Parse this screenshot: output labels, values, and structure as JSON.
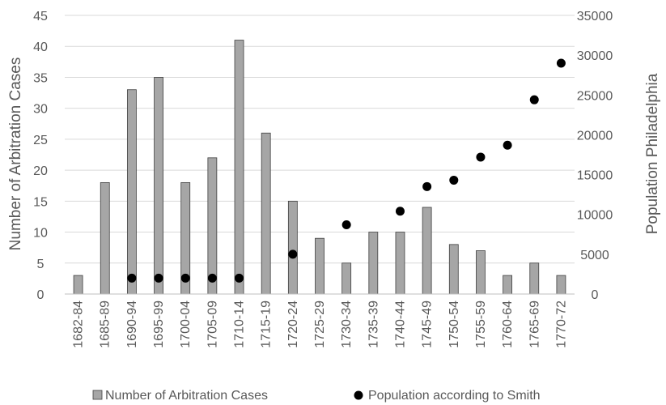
{
  "chart_data": {
    "type": "bar",
    "title": "",
    "xlabel": "",
    "ylabel": "Number of Arbitration Cases",
    "y2label": "Population Philadelphia",
    "categories": [
      "1682-84",
      "1685-89",
      "1690-94",
      "1695-99",
      "1700-04",
      "1705-09",
      "1710-14",
      "1715-19",
      "1720-24",
      "1725-29",
      "1730-34",
      "1735-39",
      "1740-44",
      "1745-49",
      "1750-54",
      "1755-59",
      "1760-64",
      "1765-69",
      "1770-72"
    ],
    "series": [
      {
        "name": "Number of Arbitration Cases",
        "type": "bar",
        "axis": "left",
        "color": "#a6a6a6",
        "values": [
          3,
          18,
          33,
          35,
          18,
          22,
          41,
          26,
          15,
          9,
          5,
          10,
          10,
          14,
          8,
          7,
          3,
          5,
          3
        ]
      },
      {
        "name": "Population according to Smith",
        "type": "scatter",
        "axis": "right",
        "color": "#000000",
        "values": [
          null,
          null,
          2000,
          2000,
          2000,
          2000,
          2000,
          null,
          5000,
          null,
          8700,
          null,
          10400,
          13500,
          14300,
          17200,
          18700,
          24400,
          29000
        ]
      }
    ],
    "ylim": [
      0,
      45
    ],
    "yticks": [
      "0",
      "5",
      "10",
      "15",
      "20",
      "25",
      "30",
      "35",
      "40",
      "45"
    ],
    "y2lim": [
      0,
      35000
    ],
    "y2ticks": [
      "0",
      "5000",
      "10000",
      "15000",
      "20000",
      "25000",
      "30000",
      "35000"
    ],
    "grid": true,
    "legend_position": "bottom"
  }
}
